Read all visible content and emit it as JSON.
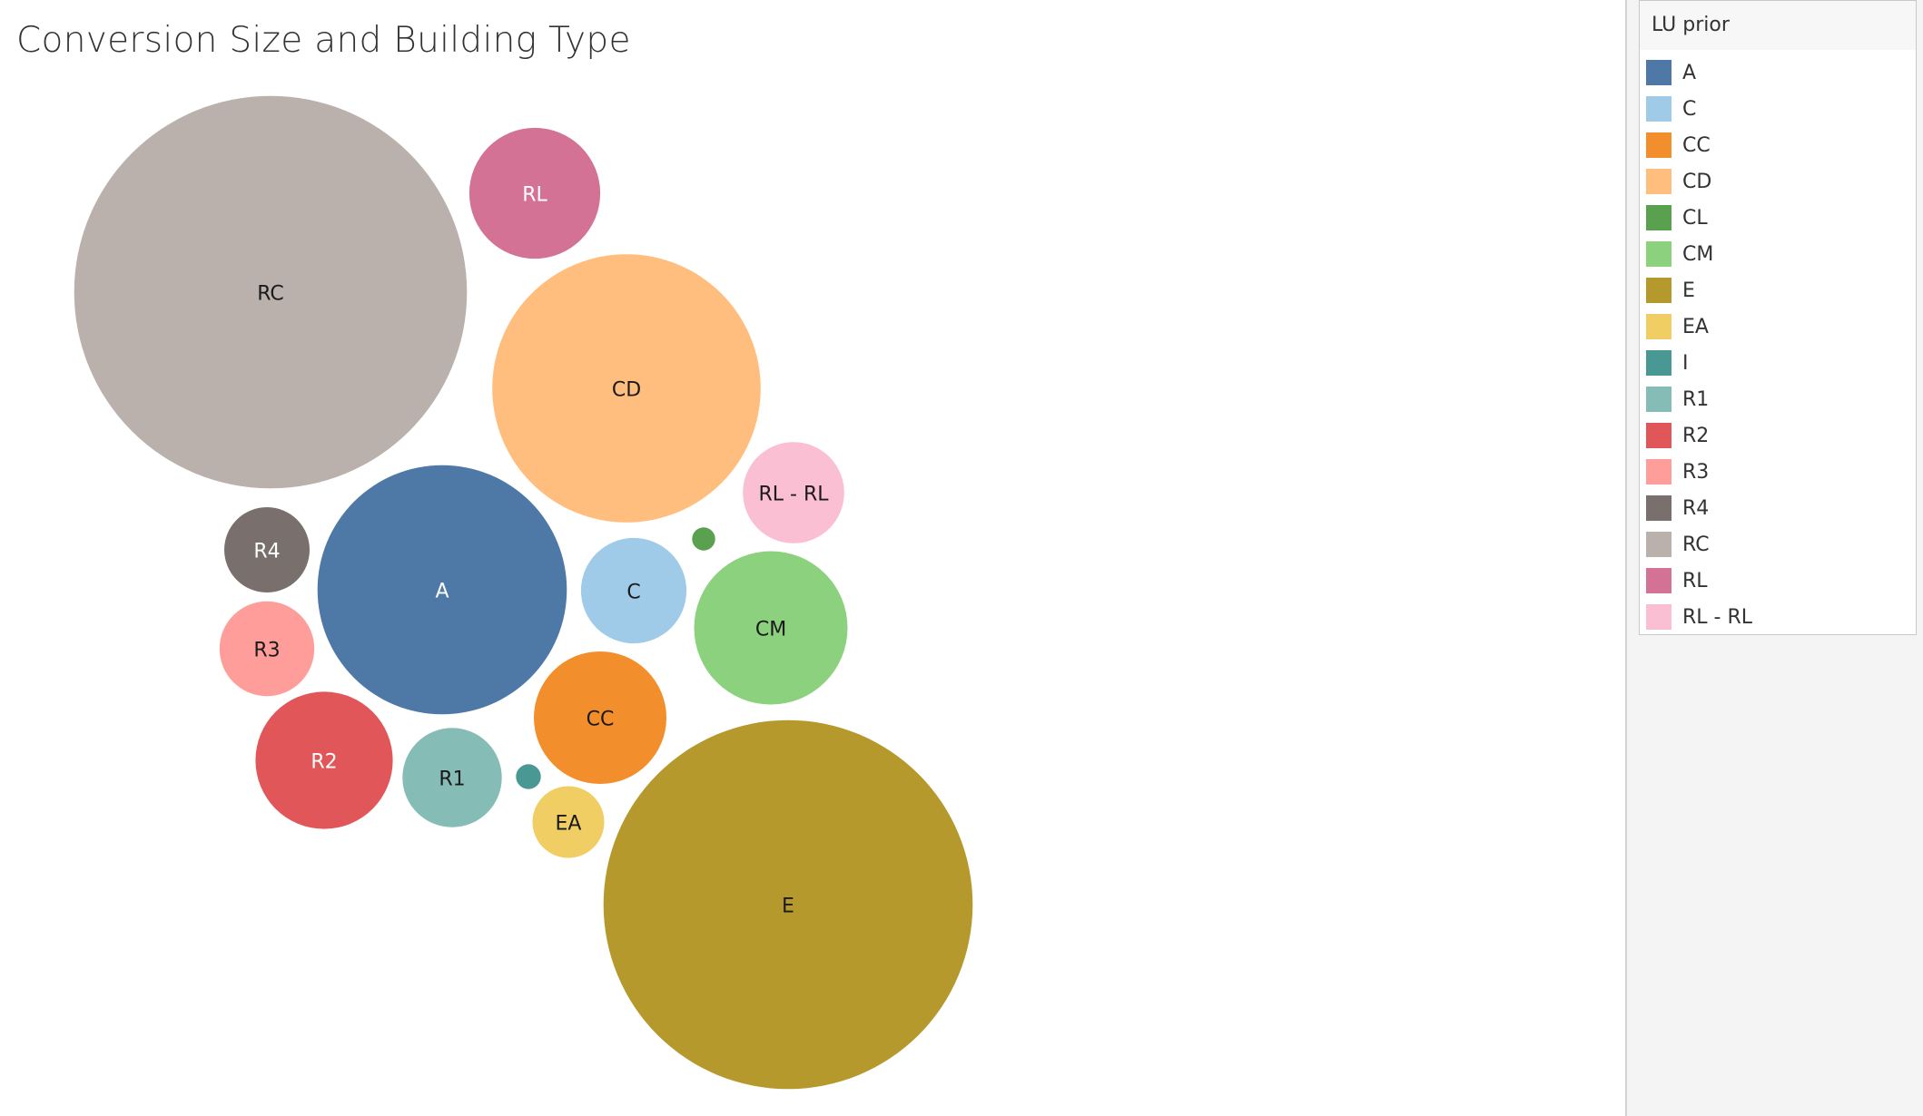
{
  "chart_data": {
    "type": "bubble",
    "title": "Conversion Size and Building Type",
    "legend_title": "LU prior",
    "legend_position": "right",
    "bubbles": [
      {
        "name": "A",
        "label": "A",
        "size": 145,
        "color": "#4e79a7",
        "text_color": "#ffffff"
      },
      {
        "name": "C",
        "label": "C",
        "size": 26,
        "color": "#a0cbe8",
        "text_color": "#1a1a1a"
      },
      {
        "name": "CC",
        "label": "CC",
        "size": 41,
        "color": "#f28e2b",
        "text_color": "#1a1a1a"
      },
      {
        "name": "CD",
        "label": "CD",
        "size": 168,
        "color": "#ffbe7d",
        "text_color": "#1a1a1a"
      },
      {
        "name": "CL",
        "label": "",
        "size": 1.25,
        "color": "#59a14f",
        "text_color": "#ffffff"
      },
      {
        "name": "CM",
        "label": "CM",
        "size": 55,
        "color": "#8cd17d",
        "text_color": "#1a1a1a"
      },
      {
        "name": "E",
        "label": "E",
        "size": 318,
        "color": "#b6992d",
        "text_color": "#1a1a1a"
      },
      {
        "name": "EA",
        "label": "EA",
        "size": 12,
        "color": "#f1ce63",
        "text_color": "#1a1a1a"
      },
      {
        "name": "I",
        "label": "",
        "size": 1.45,
        "color": "#499894",
        "text_color": "#ffffff"
      },
      {
        "name": "R1",
        "label": "R1",
        "size": 23,
        "color": "#86bcb6",
        "text_color": "#1a1a1a"
      },
      {
        "name": "R2",
        "label": "R2",
        "size": 44,
        "color": "#e15759",
        "text_color": "#ffffff"
      },
      {
        "name": "R3",
        "label": "R3",
        "size": 21,
        "color": "#ff9d9a",
        "text_color": "#1a1a1a"
      },
      {
        "name": "R4",
        "label": "R4",
        "size": 17,
        "color": "#79706e",
        "text_color": "#ffffff"
      },
      {
        "name": "RC",
        "label": "RC",
        "size": 360,
        "color": "#bab0ac",
        "text_color": "#1a1a1a"
      },
      {
        "name": "RL",
        "label": "RL",
        "size": 40,
        "color": "#d37295",
        "text_color": "#ffffff"
      },
      {
        "name": "RL - RL",
        "label": "RL - RL",
        "size": 24,
        "color": "#fabfd2",
        "text_color": "#1a1a1a"
      }
    ]
  },
  "legend": {
    "title": "LU prior",
    "items": [
      {
        "label": "A",
        "color": "#4e79a7"
      },
      {
        "label": "C",
        "color": "#a0cbe8"
      },
      {
        "label": "CC",
        "color": "#f28e2b"
      },
      {
        "label": "CD",
        "color": "#ffbe7d"
      },
      {
        "label": "CL",
        "color": "#59a14f"
      },
      {
        "label": "CM",
        "color": "#8cd17d"
      },
      {
        "label": "E",
        "color": "#b6992d"
      },
      {
        "label": "EA",
        "color": "#f1ce63"
      },
      {
        "label": "I",
        "color": "#499894"
      },
      {
        "label": "R1",
        "color": "#86bcb6"
      },
      {
        "label": "R2",
        "color": "#e15759"
      },
      {
        "label": "R3",
        "color": "#ff9d9a"
      },
      {
        "label": "R4",
        "color": "#79706e"
      },
      {
        "label": "RC",
        "color": "#bab0ac"
      },
      {
        "label": "RL",
        "color": "#d37295"
      },
      {
        "label": "RL - RL",
        "color": "#fabfd2"
      }
    ]
  }
}
